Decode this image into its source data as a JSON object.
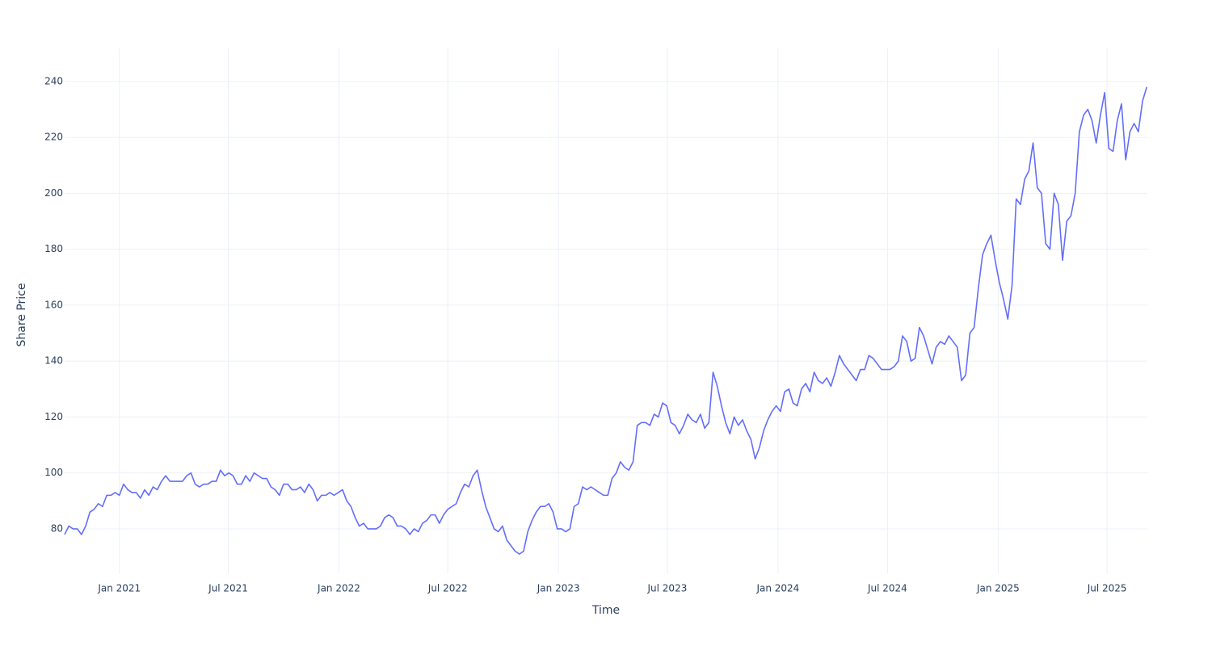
{
  "chart_data": {
    "type": "line",
    "xlabel": "Time",
    "ylabel": "Share Price",
    "grid": true,
    "xlim": [
      "2020-10-02",
      "2025-09-06"
    ],
    "ylim": [
      64.1,
      251.8
    ],
    "xticks": [
      {
        "value": "2021-01-01",
        "label": "Jan 2021"
      },
      {
        "value": "2021-07-01",
        "label": "Jul 2021"
      },
      {
        "value": "2022-01-01",
        "label": "Jan 2022"
      },
      {
        "value": "2022-07-01",
        "label": "Jul 2022"
      },
      {
        "value": "2023-01-01",
        "label": "Jan 2023"
      },
      {
        "value": "2023-07-01",
        "label": "Jul 2023"
      },
      {
        "value": "2024-01-01",
        "label": "Jan 2024"
      },
      {
        "value": "2024-07-01",
        "label": "Jul 2024"
      },
      {
        "value": "2025-01-01",
        "label": "Jan 2025"
      },
      {
        "value": "2025-07-01",
        "label": "Jul 2025"
      }
    ],
    "yticks": [
      80,
      100,
      120,
      140,
      160,
      180,
      200,
      220,
      240
    ],
    "series": [
      {
        "color": "#636efa",
        "x": [
          "2020-10-02",
          "2020-10-09",
          "2020-10-16",
          "2020-10-23",
          "2020-10-30",
          "2020-11-06",
          "2020-11-13",
          "2020-11-20",
          "2020-11-27",
          "2020-12-04",
          "2020-12-11",
          "2020-12-18",
          "2020-12-25",
          "2021-01-01",
          "2021-01-08",
          "2021-01-15",
          "2021-01-22",
          "2021-01-29",
          "2021-02-05",
          "2021-02-12",
          "2021-02-19",
          "2021-02-26",
          "2021-03-05",
          "2021-03-12",
          "2021-03-19",
          "2021-03-26",
          "2021-04-02",
          "2021-04-09",
          "2021-04-16",
          "2021-04-23",
          "2021-04-30",
          "2021-05-07",
          "2021-05-14",
          "2021-05-21",
          "2021-05-28",
          "2021-06-04",
          "2021-06-11",
          "2021-06-18",
          "2021-06-25",
          "2021-07-02",
          "2021-07-09",
          "2021-07-16",
          "2021-07-23",
          "2021-07-30",
          "2021-08-06",
          "2021-08-13",
          "2021-08-20",
          "2021-08-27",
          "2021-09-03",
          "2021-09-10",
          "2021-09-17",
          "2021-09-24",
          "2021-10-01",
          "2021-10-08",
          "2021-10-15",
          "2021-10-22",
          "2021-10-29",
          "2021-11-05",
          "2021-11-12",
          "2021-11-19",
          "2021-11-26",
          "2021-12-03",
          "2021-12-10",
          "2021-12-17",
          "2021-12-24",
          "2021-12-31",
          "2022-01-07",
          "2022-01-14",
          "2022-01-21",
          "2022-01-28",
          "2022-02-04",
          "2022-02-11",
          "2022-02-18",
          "2022-02-25",
          "2022-03-04",
          "2022-03-11",
          "2022-03-18",
          "2022-03-25",
          "2022-04-01",
          "2022-04-08",
          "2022-04-15",
          "2022-04-22",
          "2022-04-29",
          "2022-05-06",
          "2022-05-13",
          "2022-05-20",
          "2022-05-27",
          "2022-06-03",
          "2022-06-10",
          "2022-06-17",
          "2022-06-24",
          "2022-07-01",
          "2022-07-08",
          "2022-07-15",
          "2022-07-22",
          "2022-07-29",
          "2022-08-05",
          "2022-08-12",
          "2022-08-19",
          "2022-08-26",
          "2022-09-02",
          "2022-09-09",
          "2022-09-16",
          "2022-09-23",
          "2022-09-30",
          "2022-10-07",
          "2022-10-14",
          "2022-10-21",
          "2022-10-28",
          "2022-11-04",
          "2022-11-11",
          "2022-11-18",
          "2022-11-25",
          "2022-12-02",
          "2022-12-09",
          "2022-12-16",
          "2022-12-23",
          "2022-12-30",
          "2023-01-06",
          "2023-01-13",
          "2023-01-20",
          "2023-01-27",
          "2023-02-03",
          "2023-02-10",
          "2023-02-17",
          "2023-02-24",
          "2023-03-03",
          "2023-03-10",
          "2023-03-17",
          "2023-03-24",
          "2023-03-31",
          "2023-04-07",
          "2023-04-14",
          "2023-04-21",
          "2023-04-28",
          "2023-05-05",
          "2023-05-12",
          "2023-05-19",
          "2023-05-26",
          "2023-06-02",
          "2023-06-09",
          "2023-06-16",
          "2023-06-23",
          "2023-06-30",
          "2023-07-07",
          "2023-07-14",
          "2023-07-21",
          "2023-07-28",
          "2023-08-04",
          "2023-08-11",
          "2023-08-18",
          "2023-08-25",
          "2023-09-01",
          "2023-09-08",
          "2023-09-15",
          "2023-09-22",
          "2023-09-29",
          "2023-10-06",
          "2023-10-13",
          "2023-10-20",
          "2023-10-27",
          "2023-11-03",
          "2023-11-10",
          "2023-11-17",
          "2023-11-24",
          "2023-12-01",
          "2023-12-08",
          "2023-12-15",
          "2023-12-22",
          "2023-12-29",
          "2024-01-05",
          "2024-01-12",
          "2024-01-19",
          "2024-01-26",
          "2024-02-02",
          "2024-02-09",
          "2024-02-16",
          "2024-02-23",
          "2024-03-01",
          "2024-03-08",
          "2024-03-15",
          "2024-03-22",
          "2024-03-29",
          "2024-04-05",
          "2024-04-12",
          "2024-04-19",
          "2024-04-26",
          "2024-05-03",
          "2024-05-10",
          "2024-05-17",
          "2024-05-24",
          "2024-05-31",
          "2024-06-07",
          "2024-06-14",
          "2024-06-21",
          "2024-06-28",
          "2024-07-05",
          "2024-07-12",
          "2024-07-19",
          "2024-07-26",
          "2024-08-02",
          "2024-08-09",
          "2024-08-16",
          "2024-08-23",
          "2024-08-30",
          "2024-09-06",
          "2024-09-13",
          "2024-09-20",
          "2024-09-27",
          "2024-10-04",
          "2024-10-11",
          "2024-10-18",
          "2024-10-25",
          "2024-11-01",
          "2024-11-08",
          "2024-11-15",
          "2024-11-22",
          "2024-11-29",
          "2024-12-06",
          "2024-12-13",
          "2024-12-20",
          "2024-12-27",
          "2025-01-03",
          "2025-01-10",
          "2025-01-17",
          "2025-01-24",
          "2025-01-31",
          "2025-02-07",
          "2025-02-14",
          "2025-02-21",
          "2025-02-28",
          "2025-03-07",
          "2025-03-14",
          "2025-03-21",
          "2025-03-28",
          "2025-04-04",
          "2025-04-11",
          "2025-04-18",
          "2025-04-25",
          "2025-05-02",
          "2025-05-09",
          "2025-05-16",
          "2025-05-23",
          "2025-05-30",
          "2025-06-06",
          "2025-06-13",
          "2025-06-20",
          "2025-06-27",
          "2025-07-04",
          "2025-07-11",
          "2025-07-18",
          "2025-07-25",
          "2025-08-01",
          "2025-08-08",
          "2025-08-15",
          "2025-08-22",
          "2025-08-29",
          "2025-09-05"
        ],
        "values": [
          78,
          81,
          80,
          80,
          78,
          81,
          86,
          87,
          89,
          88,
          92,
          92,
          93,
          92,
          96,
          94,
          93,
          93,
          91,
          94,
          92,
          95,
          94,
          97,
          99,
          97,
          97,
          97,
          97,
          99,
          100,
          96,
          95,
          96,
          96,
          97,
          97,
          101,
          99,
          100,
          99,
          96,
          96,
          99,
          97,
          100,
          99,
          98,
          98,
          95,
          94,
          92,
          96,
          96,
          94,
          94,
          95,
          93,
          96,
          94,
          90,
          92,
          92,
          93,
          92,
          93,
          94,
          90,
          88,
          84,
          81,
          82,
          80,
          80,
          80,
          81,
          84,
          85,
          84,
          81,
          81,
          80,
          78,
          80,
          79,
          82,
          83,
          85,
          85,
          82,
          85,
          87,
          88,
          89,
          93,
          96,
          95,
          99,
          101,
          94,
          88,
          84,
          80,
          79,
          81,
          76,
          74,
          72,
          71,
          72,
          79,
          83,
          86,
          88,
          88,
          89,
          86,
          80,
          80,
          79,
          80,
          88,
          89,
          95,
          94,
          95,
          94,
          93,
          92,
          92,
          98,
          100,
          104,
          102,
          101,
          104,
          117,
          118,
          118,
          117,
          121,
          120,
          125,
          124,
          118,
          117,
          114,
          117,
          121,
          119,
          118,
          121,
          116,
          118,
          136,
          131,
          124,
          118,
          114,
          120,
          117,
          119,
          115,
          112,
          105,
          109,
          115,
          119,
          122,
          124,
          122,
          129,
          130,
          125,
          124,
          130,
          132,
          129,
          136,
          133,
          132,
          134,
          131,
          136,
          142,
          139,
          137,
          135,
          133,
          137,
          137,
          142,
          141,
          139,
          137,
          137,
          137,
          138,
          140,
          149,
          147,
          140,
          141,
          152,
          149,
          144,
          139,
          145,
          147,
          146,
          149,
          147,
          145,
          133,
          135,
          150,
          152,
          166,
          178,
          182,
          185,
          176,
          168,
          162,
          155,
          167,
          198,
          196,
          205,
          208,
          218,
          202,
          200,
          182,
          180,
          200,
          196,
          176,
          190,
          192,
          200,
          222,
          228,
          230,
          226,
          218,
          228,
          236,
          216,
          215,
          226,
          232,
          212,
          222,
          225,
          222,
          233,
          238
        ]
      }
    ]
  }
}
